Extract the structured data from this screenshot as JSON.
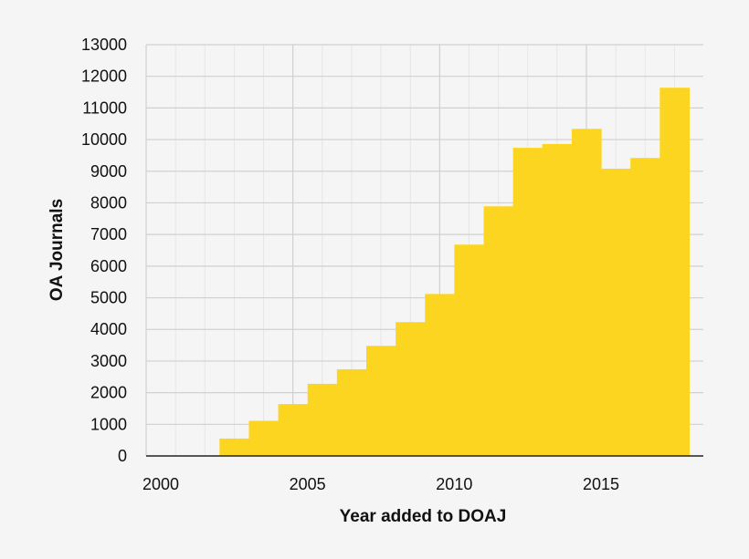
{
  "chart_data": {
    "type": "area",
    "step": true,
    "title": "",
    "xlabel": "Year added to DOAJ",
    "ylabel": "OA Journals",
    "xlim": [
      2000,
      2018.5
    ],
    "ylim": [
      0,
      13000
    ],
    "x_ticks": [
      "2000",
      "2005",
      "2010",
      "2015"
    ],
    "y_ticks": [
      "0",
      "1000",
      "2000",
      "3000",
      "4000",
      "5000",
      "6000",
      "7000",
      "8000",
      "9000",
      "10000",
      "11000",
      "12000",
      "13000"
    ],
    "grid": true,
    "legend": "none",
    "series": [
      {
        "color": "#fcd520",
        "points": [
          {
            "x": 2002.5,
            "y": 550
          },
          {
            "x": 2003.5,
            "y": 1110
          },
          {
            "x": 2004.5,
            "y": 1640
          },
          {
            "x": 2005.5,
            "y": 2280
          },
          {
            "x": 2006.5,
            "y": 2740
          },
          {
            "x": 2007.5,
            "y": 3480
          },
          {
            "x": 2008.5,
            "y": 4230
          },
          {
            "x": 2009.5,
            "y": 5120
          },
          {
            "x": 2010.5,
            "y": 6680
          },
          {
            "x": 2011.5,
            "y": 7890
          },
          {
            "x": 2012.5,
            "y": 9740
          },
          {
            "x": 2013.5,
            "y": 9860
          },
          {
            "x": 2014.5,
            "y": 10340
          },
          {
            "x": 2015.5,
            "y": 9080
          },
          {
            "x": 2016.5,
            "y": 9420
          },
          {
            "x": 2017.5,
            "y": 11640
          }
        ]
      }
    ]
  }
}
